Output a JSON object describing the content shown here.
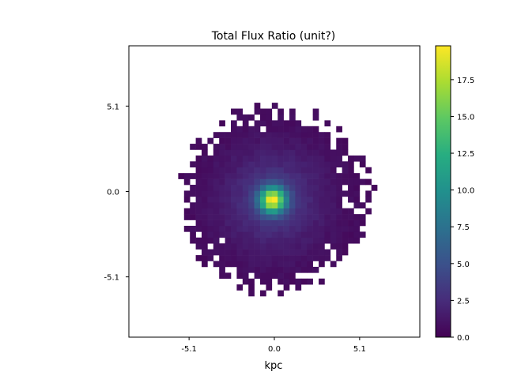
{
  "chart_data": {
    "type": "heatmap",
    "title": "Total Flux Ratio (unit?)",
    "xlabel": "kpc",
    "ylabel": "",
    "xlim": [
      -8.7,
      8.7
    ],
    "ylim": [
      -8.7,
      8.7
    ],
    "xticks": [
      -5.1,
      0.0,
      5.1
    ],
    "xtick_labels": [
      "-5.1",
      "0.0",
      "5.1"
    ],
    "yticks": [
      -5.1,
      0.0,
      5.1
    ],
    "ytick_labels": [
      "-5.1",
      "0.0",
      "5.1"
    ],
    "grid": false,
    "colormap": "viridis",
    "colorbar": {
      "vmin": 0.0,
      "vmax": 19.8,
      "ticks": [
        0.0,
        2.5,
        5.0,
        7.5,
        10.0,
        12.5,
        15.0,
        17.5
      ],
      "tick_labels": [
        "0.0",
        "2.5",
        "5.0",
        "7.5",
        "10.0",
        "12.5",
        "15.0",
        "17.5"
      ]
    },
    "pixel_size_kpc": 0.35,
    "data_extent_kpc": {
      "x": [
        -6.1,
        6.1
      ],
      "y": [
        -6.6,
        5.3
      ]
    },
    "peak": {
      "x": -0.1,
      "y": -0.5,
      "value": 19.8
    },
    "background_level": 1.0,
    "core_width_kpc": 0.55,
    "halo_width_kpc": 2.0
  }
}
